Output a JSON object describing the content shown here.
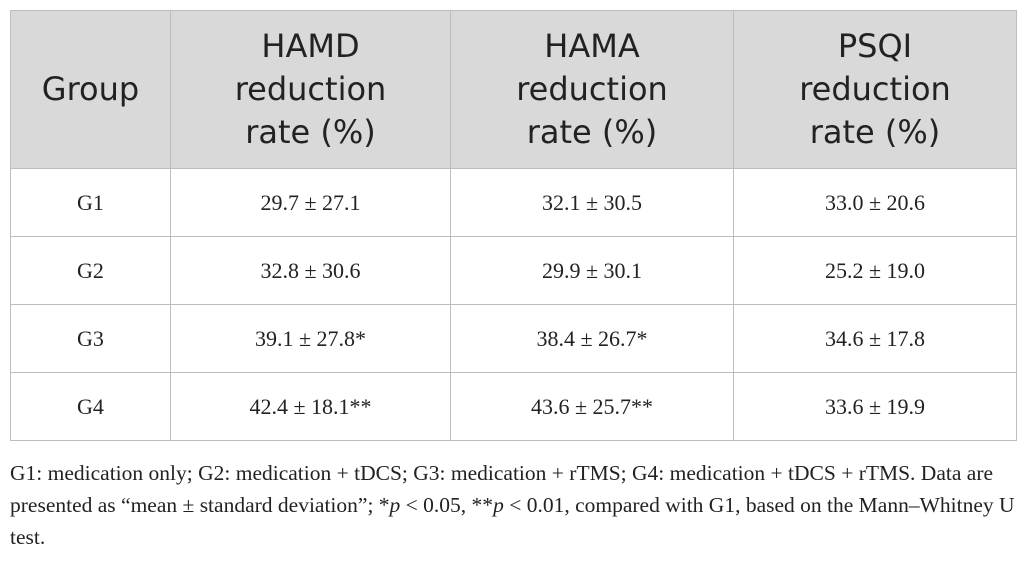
{
  "table": {
    "header": [
      "Group",
      "HAMD\nreduction\nrate (%)",
      "HAMA\nreduction\nrate (%)",
      "PSQI\nreduction\nrate (%)"
    ],
    "rows": [
      [
        "G1",
        "29.7 ± 27.1",
        "32.1 ± 30.5",
        "33.0 ± 20.6"
      ],
      [
        "G2",
        "32.8 ± 30.6",
        "29.9 ± 30.1",
        "25.2 ± 19.0"
      ],
      [
        "G3",
        "39.1 ± 27.8*",
        "38.4 ± 26.7*",
        "34.6 ± 17.8"
      ],
      [
        "G4",
        "42.4 ± 18.1**",
        "43.6 ± 25.7**",
        "33.6 ± 19.9"
      ]
    ]
  },
  "footnote": [
    "G1: medication only; G2: medication + tDCS; G3: medication + rTMS; G4: medication + tDCS + rTMS. Data are presented as “mean ± standard deviation”; *",
    "p",
    " < 0.05, **",
    "p",
    " < 0.01, compared with G1, based on the Mann–Whitney U test."
  ]
}
